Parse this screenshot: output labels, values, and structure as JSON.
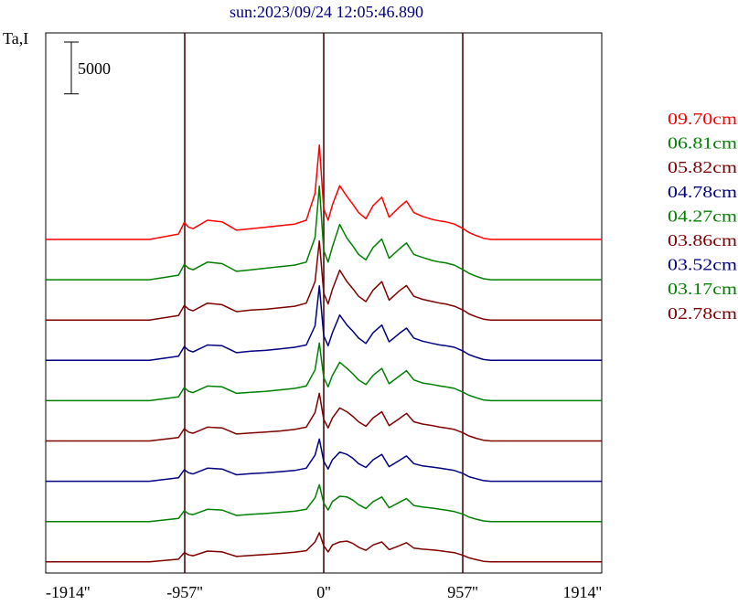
{
  "chart_data": {
    "type": "line",
    "title": "sun:2023/09/24 12:05:46.890",
    "ylabel": "Ta,I",
    "scale_bar_label": "5000",
    "scale_bar_value": 5000,
    "xlim": [
      -1914,
      1914
    ],
    "x_ticks": [
      {
        "value": -1914,
        "label": "-1914''"
      },
      {
        "value": -957,
        "label": "-957''"
      },
      {
        "value": 0,
        "label": "0''"
      },
      {
        "value": 957,
        "label": "957''"
      },
      {
        "value": 1914,
        "label": "1914''"
      }
    ],
    "vlines": [
      -957,
      0,
      957
    ],
    "x": [
      -1914,
      -1200,
      -1000,
      -960,
      -930,
      -900,
      -800,
      -700,
      -600,
      -500,
      -400,
      -300,
      -200,
      -120,
      -60,
      -30,
      0,
      30,
      60,
      110,
      160,
      200,
      240,
      290,
      340,
      400,
      450,
      520,
      570,
      620,
      680,
      750,
      800,
      840,
      900,
      960,
      1000,
      1050,
      1100,
      1150,
      1914
    ],
    "series": [
      {
        "name": "09.70cm",
        "color": "#ff0000",
        "values": [
          0,
          0,
          700,
          2200,
          1600,
          1400,
          2500,
          2300,
          1200,
          1400,
          1600,
          1800,
          2000,
          2500,
          6000,
          12300,
          4000,
          2500,
          4500,
          7000,
          5600,
          4600,
          3500,
          2700,
          4400,
          5500,
          2900,
          4200,
          5000,
          3500,
          3000,
          2600,
          2400,
          2300,
          2000,
          1400,
          900,
          500,
          150,
          0,
          0
        ]
      },
      {
        "name": "06.81cm",
        "color": "#008000",
        "values": [
          0,
          0,
          600,
          2000,
          1500,
          1300,
          2300,
          2100,
          1100,
          1300,
          1500,
          1700,
          1900,
          2300,
          5500,
          12200,
          3800,
          2300,
          4300,
          7200,
          5400,
          4400,
          3300,
          2600,
          4200,
          5300,
          2800,
          4000,
          4800,
          3300,
          2900,
          2500,
          2300,
          2200,
          1900,
          1300,
          850,
          450,
          130,
          0,
          0
        ]
      },
      {
        "name": "05.82cm",
        "color": "#800000",
        "values": [
          0,
          0,
          600,
          1900,
          1400,
          1200,
          2200,
          2000,
          1100,
          1300,
          1400,
          1600,
          1800,
          2200,
          5000,
          10300,
          3500,
          2100,
          4000,
          6500,
          5000,
          4100,
          3100,
          2400,
          3900,
          5000,
          2600,
          3800,
          4500,
          3100,
          2700,
          2400,
          2200,
          2100,
          1800,
          1300,
          800,
          420,
          120,
          0,
          0
        ]
      },
      {
        "name": "04.78cm",
        "color": "#000080",
        "values": [
          0,
          0,
          550,
          1800,
          1300,
          1100,
          2000,
          1900,
          1000,
          1200,
          1300,
          1500,
          1700,
          2000,
          4500,
          9700,
          3200,
          1900,
          3600,
          5900,
          4600,
          3800,
          2900,
          2200,
          3600,
          4600,
          2400,
          3500,
          4200,
          2900,
          2500,
          2200,
          2000,
          1900,
          1700,
          1200,
          750,
          400,
          110,
          0,
          0
        ]
      },
      {
        "name": "04.27cm",
        "color": "#008000",
        "values": [
          0,
          0,
          500,
          1700,
          1200,
          1050,
          1900,
          1800,
          950,
          1100,
          1200,
          1400,
          1600,
          1900,
          4000,
          7500,
          3000,
          1800,
          3300,
          5000,
          4200,
          3500,
          2700,
          2100,
          3300,
          4200,
          2200,
          3200,
          3900,
          2700,
          2300,
          2100,
          1900,
          1800,
          1600,
          1100,
          700,
          380,
          100,
          0,
          0
        ]
      },
      {
        "name": "03.86cm",
        "color": "#800000",
        "values": [
          0,
          0,
          450,
          1600,
          1150,
          1000,
          1800,
          1700,
          900,
          1050,
          1150,
          1300,
          1500,
          1800,
          3700,
          6200,
          2800,
          1700,
          3000,
          4300,
          3800,
          3200,
          2500,
          1900,
          3000,
          3800,
          2000,
          2900,
          3600,
          2500,
          2200,
          2000,
          1800,
          1700,
          1500,
          1050,
          650,
          350,
          90,
          0,
          0
        ]
      },
      {
        "name": "03.52cm",
        "color": "#000080",
        "values": [
          0,
          0,
          450,
          1500,
          1100,
          950,
          1700,
          1600,
          850,
          1000,
          1100,
          1250,
          1400,
          1700,
          3400,
          5500,
          2600,
          1600,
          2800,
          3800,
          3500,
          3000,
          2300,
          1800,
          2800,
          3500,
          1900,
          2700,
          3300,
          2300,
          2000,
          1850,
          1700,
          1600,
          1400,
          1000,
          600,
          330,
          80,
          0,
          0
        ]
      },
      {
        "name": "03.17cm",
        "color": "#008000",
        "values": [
          0,
          0,
          400,
          1400,
          1000,
          900,
          1600,
          1500,
          800,
          950,
          1050,
          1200,
          1350,
          1600,
          3100,
          4800,
          2400,
          1500,
          2600,
          3300,
          3200,
          2800,
          2200,
          1700,
          2600,
          3200,
          1800,
          2500,
          3000,
          2100,
          1900,
          1750,
          1600,
          1500,
          1300,
          950,
          580,
          310,
          80,
          0,
          0
        ]
      },
      {
        "name": "02.78cm",
        "color": "#800000",
        "values": [
          0,
          0,
          350,
          1200,
          900,
          800,
          1400,
          1300,
          700,
          850,
          950,
          1100,
          1250,
          1450,
          2600,
          3800,
          2100,
          1300,
          2200,
          2600,
          2700,
          2400,
          1900,
          1500,
          2200,
          2600,
          1600,
          2100,
          2500,
          1800,
          1650,
          1550,
          1450,
          1350,
          1200,
          850,
          520,
          280,
          70,
          0,
          0
        ]
      }
    ]
  }
}
